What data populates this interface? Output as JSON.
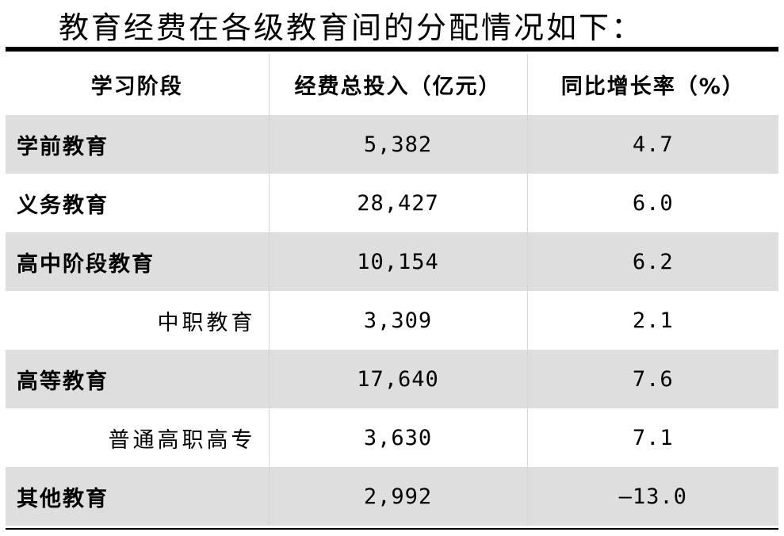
{
  "intro": "教育经费在各级教育间的分配情况如下：",
  "table": {
    "headers": [
      "学习阶段",
      "经费总投入（亿元）",
      "同比增长率（%）"
    ],
    "rows": [
      {
        "stage": "学前教育",
        "total": "5,382",
        "growth": "4.7"
      },
      {
        "stage": "义务教育",
        "total": "28,427",
        "growth": "6.0"
      },
      {
        "stage": "高中阶段教育",
        "total": "10,154",
        "growth": "6.2"
      },
      {
        "stage": "中职教育",
        "total": "3,309",
        "growth": "2.1"
      },
      {
        "stage": "高等教育",
        "total": "17,640",
        "growth": "7.6"
      },
      {
        "stage": "普通高职高专",
        "total": "3,630",
        "growth": "7.1"
      },
      {
        "stage": "其他教育",
        "total": "2,992",
        "growth": "—13.0"
      }
    ]
  },
  "colors": {
    "shaded_row": "#dedede",
    "plain_row": "#ffffff",
    "rule": "#000000"
  }
}
